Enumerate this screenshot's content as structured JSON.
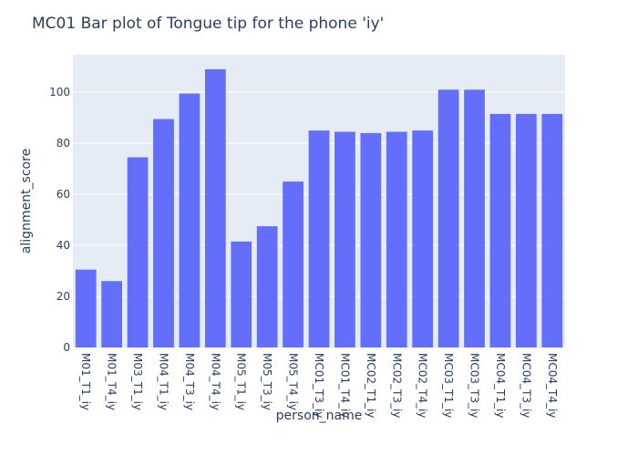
{
  "chart_data": {
    "type": "bar",
    "title": "MC01 Bar plot of Tongue tip for the phone 'iy'",
    "xlabel": "person_name",
    "ylabel": "alignment_score",
    "categories": [
      "M01_T1_iy",
      "M01_T4_iy",
      "M03_T1_iy",
      "M04_T1_iy",
      "M04_T3_iy",
      "M04_T4_iy",
      "M05_T1_iy",
      "M05_T3_iy",
      "M05_T4_iy",
      "MC01_T3_iy",
      "MC01_T4_iy",
      "MC02_T1_iy",
      "MC02_T3_iy",
      "MC02_T4_iy",
      "MC03_T1_iy",
      "MC03_T3_iy",
      "MC04_T1_iy",
      "MC04_T3_iy",
      "MC04_T4_iy"
    ],
    "values": [
      30.5,
      26.0,
      74.5,
      89.5,
      99.5,
      109.0,
      41.5,
      47.5,
      65.0,
      85.0,
      84.5,
      84.0,
      84.5,
      85.0,
      101.0,
      101.0,
      91.5,
      91.5,
      91.5
    ],
    "yticks": [
      0,
      20,
      40,
      60,
      80,
      100
    ],
    "ylim": [
      0,
      114.7
    ],
    "grid": true,
    "colors": {
      "bar": "#636efa",
      "plot_bg": "#e5ecf6",
      "grid": "#ffffff",
      "text": "#2a3f5f"
    }
  }
}
